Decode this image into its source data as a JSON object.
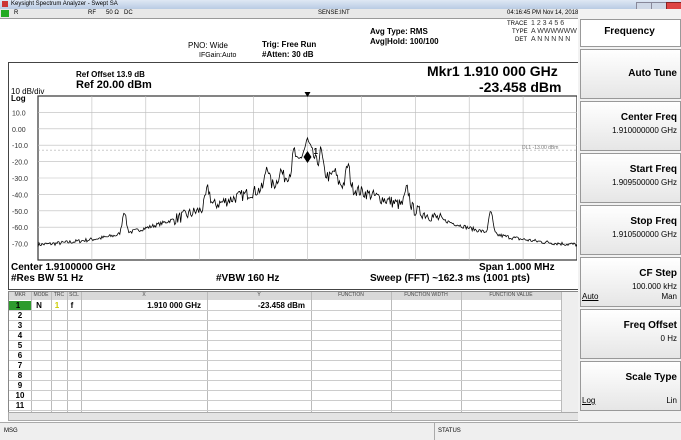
{
  "title_bar": "Keysight Spectrum Analyzer - Swept SA",
  "status_bar": {
    "r": "R",
    "rf": "RF",
    "impedance": "50 Ω",
    "coupling": "DC",
    "sense": "SENSE:INT",
    "datetime": "04:16:45 PM Nov 14, 2018"
  },
  "settings": {
    "pno": "PNO: Wide",
    "ifgain": "IFGain:Auto",
    "trig": "Trig: Free Run",
    "atten": "#Atten: 30 dB",
    "avg_type": "Avg Type: RMS",
    "avg_hold": "Avg|Hold: 100/100",
    "trace": "TRACE",
    "trace_nums": "1 2 3 4 5 6",
    "type": "TYPE",
    "type_vals": "A WWWWWW",
    "det": "DET",
    "det_vals": "A N N N N N"
  },
  "plot": {
    "ref_offset": "Ref Offset 13.9 dB",
    "scale": "10 dB/div",
    "ref_level": "Ref 20.00 dBm",
    "log": "Log",
    "marker_freq": "Mkr1 1.910 000 GHz",
    "marker_amp": "-23.458 dBm",
    "y_labels": [
      "10.0",
      "0.00",
      "-10.0",
      "-20.0",
      "-30.0",
      "-40.0",
      "-50.0",
      "-60.0",
      "-70.0"
    ],
    "display_line": "DL1 -13.00 dBm",
    "marker_label": "1",
    "center": "Center 1.9100000 GHz",
    "res_bw": "#Res BW 51 Hz",
    "vbw": "#VBW 160 Hz",
    "span": "Span 1.000 MHz",
    "sweep": "Sweep (FFT) ~162.3 ms (1001 pts)"
  },
  "table": {
    "headers": [
      "MKR",
      "MODE",
      "TRC",
      "SCL",
      "X",
      "Y",
      "FUNCTION",
      "FUNCTION WIDTH",
      "FUNCTION VALUE"
    ],
    "rows": [
      [
        "1",
        "N",
        "1",
        "f",
        "1.910 000 GHz",
        "-23.458 dBm"
      ]
    ],
    "empty_rows": [
      "2",
      "3",
      "4",
      "5",
      "6",
      "7",
      "8",
      "9",
      "10",
      "11"
    ]
  },
  "footer": {
    "msg": "MSG",
    "status": "STATUS"
  },
  "softkeys": {
    "menu": "Frequency",
    "keys": [
      {
        "label": "Auto Tune"
      },
      {
        "label": "Center Freq",
        "value": "1.910000000 GHz"
      },
      {
        "label": "Start Freq",
        "value": "1.909500000 GHz"
      },
      {
        "label": "Stop Freq",
        "value": "1.910500000 GHz"
      },
      {
        "label": "CF Step",
        "value": "100.000 kHz",
        "options": [
          "Auto",
          "Man"
        ]
      },
      {
        "label": "Freq Offset",
        "value": "0 Hz"
      },
      {
        "label": "Scale Type",
        "options": [
          "Log",
          "Lin"
        ]
      }
    ]
  }
}
